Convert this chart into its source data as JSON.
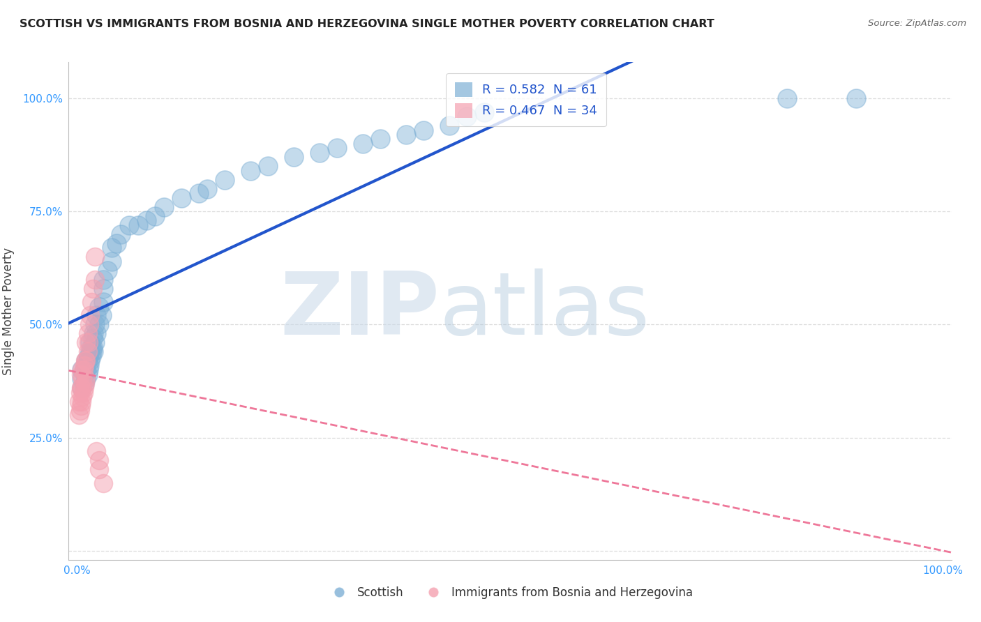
{
  "title": "SCOTTISH VS IMMIGRANTS FROM BOSNIA AND HERZEGOVINA SINGLE MOTHER POVERTY CORRELATION CHART",
  "source": "Source: ZipAtlas.com",
  "ylabel": "Single Mother Poverty",
  "xlim": [
    -0.01,
    1.01
  ],
  "ylim": [
    -0.02,
    1.08
  ],
  "xticks": [
    0,
    0.25,
    0.5,
    0.75,
    1.0
  ],
  "yticks": [
    0,
    0.25,
    0.5,
    0.75,
    1.0
  ],
  "xtick_labels": [
    "0.0%",
    "",
    "",
    "",
    "100.0%"
  ],
  "ytick_labels": [
    "",
    "25.0%",
    "50.0%",
    "75.0%",
    "100.0%"
  ],
  "scottish_color": "#7EB0D5",
  "bosnian_color": "#F4A0B0",
  "trend_blue": "#2255CC",
  "trend_pink": "#EE7799",
  "scottish_R": 0.582,
  "scottish_N": 61,
  "bosnian_R": 0.467,
  "bosnian_N": 34,
  "watermark_zip": "ZIP",
  "watermark_atlas": "atlas",
  "watermark_color_zip": "#C8D8E8",
  "watermark_color_atlas": "#B0C8DC",
  "legend_label_blue": "Scottish",
  "legend_label_pink": "Immigrants from Bosnia and Herzegovina",
  "scottish_x": [
    0.005,
    0.005,
    0.005,
    0.008,
    0.008,
    0.01,
    0.01,
    0.01,
    0.012,
    0.012,
    0.013,
    0.013,
    0.014,
    0.015,
    0.015,
    0.015,
    0.016,
    0.016,
    0.017,
    0.018,
    0.018,
    0.019,
    0.019,
    0.02,
    0.02,
    0.022,
    0.022,
    0.025,
    0.025,
    0.028,
    0.03,
    0.03,
    0.03,
    0.035,
    0.04,
    0.04,
    0.045,
    0.05,
    0.06,
    0.07,
    0.08,
    0.09,
    0.1,
    0.12,
    0.14,
    0.15,
    0.17,
    0.2,
    0.22,
    0.25,
    0.28,
    0.3,
    0.33,
    0.35,
    0.38,
    0.4,
    0.43,
    0.45,
    0.47,
    0.82,
    0.9
  ],
  "scottish_y": [
    0.36,
    0.38,
    0.4,
    0.37,
    0.4,
    0.38,
    0.4,
    0.42,
    0.39,
    0.42,
    0.4,
    0.43,
    0.41,
    0.42,
    0.44,
    0.46,
    0.43,
    0.45,
    0.44,
    0.45,
    0.47,
    0.44,
    0.48,
    0.46,
    0.5,
    0.48,
    0.52,
    0.5,
    0.54,
    0.52,
    0.55,
    0.58,
    0.6,
    0.62,
    0.64,
    0.67,
    0.68,
    0.7,
    0.72,
    0.72,
    0.73,
    0.74,
    0.76,
    0.78,
    0.79,
    0.8,
    0.82,
    0.84,
    0.85,
    0.87,
    0.88,
    0.89,
    0.9,
    0.91,
    0.92,
    0.93,
    0.94,
    0.96,
    0.97,
    1.0,
    1.0
  ],
  "bosnian_x": [
    0.002,
    0.002,
    0.003,
    0.003,
    0.004,
    0.004,
    0.004,
    0.005,
    0.005,
    0.005,
    0.006,
    0.006,
    0.007,
    0.007,
    0.008,
    0.008,
    0.009,
    0.009,
    0.01,
    0.01,
    0.01,
    0.012,
    0.012,
    0.013,
    0.014,
    0.015,
    0.016,
    0.018,
    0.02,
    0.02,
    0.022,
    0.025,
    0.025,
    0.03
  ],
  "bosnian_y": [
    0.3,
    0.33,
    0.31,
    0.35,
    0.32,
    0.36,
    0.39,
    0.33,
    0.36,
    0.4,
    0.34,
    0.38,
    0.35,
    0.4,
    0.36,
    0.41,
    0.37,
    0.42,
    0.38,
    0.42,
    0.46,
    0.44,
    0.48,
    0.46,
    0.5,
    0.52,
    0.55,
    0.58,
    0.6,
    0.65,
    0.22,
    0.2,
    0.18,
    0.15
  ]
}
